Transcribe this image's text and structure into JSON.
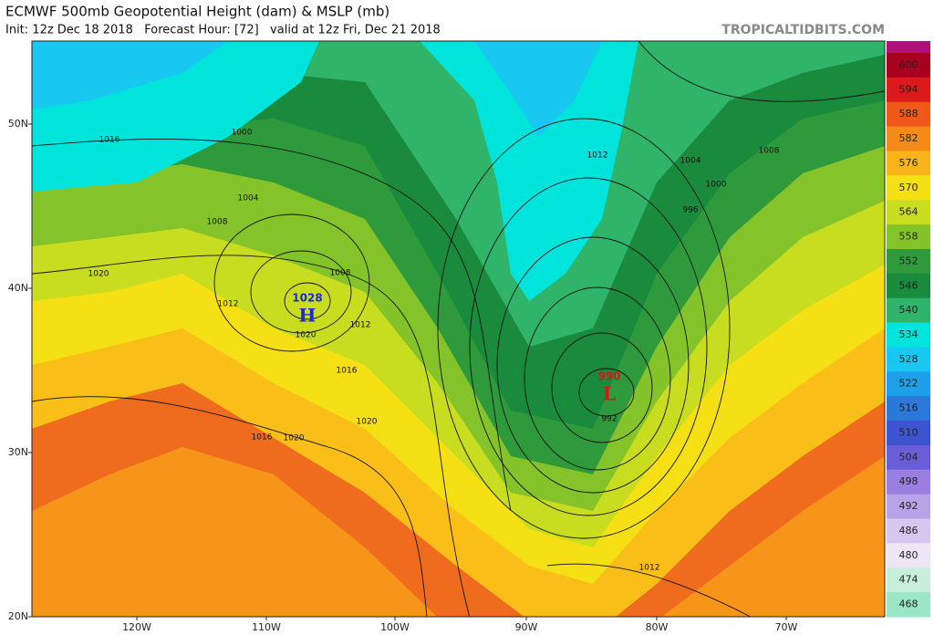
{
  "header": {
    "title": "ECMWF 500mb Geopotential Height (dam) & MSLP (mb)",
    "subtitle": "Init: 12z Dec 18 2018   Forecast Hour: [72]   valid at 12z Fri, Dec 21 2018",
    "credit": "TROPICALTIDBITS.COM"
  },
  "colorbar": {
    "labels": [
      600,
      594,
      588,
      582,
      576,
      570,
      564,
      558,
      552,
      546,
      540,
      534,
      528,
      522,
      516,
      510,
      504,
      498,
      492,
      486,
      480,
      474,
      468
    ],
    "colors": [
      "#a8001e",
      "#dc1a1c",
      "#ef5a1a",
      "#f48a18",
      "#f8b418",
      "#f4e014",
      "#c8dc20",
      "#84c42a",
      "#2e9a3c",
      "#1a8a3c",
      "#2fb46a",
      "#00e4dc",
      "#18c8f0",
      "#1ea0e8",
      "#2a78d8",
      "#3c54d0",
      "#6a5ed8",
      "#9a7ee0",
      "#b8a2e8",
      "#d6c6f0",
      "#eee6f4",
      "#c8eedc",
      "#9ae6c6"
    ],
    "top_color": "#b0107a"
  },
  "lat_labels": [
    "50N",
    "40N",
    "30N",
    "20N"
  ],
  "lon_labels": [
    "120W",
    "110W",
    "100W",
    "90W",
    "80W",
    "70W"
  ],
  "pressure_labels": [
    1016,
    1000,
    1004,
    1008,
    1020,
    1012,
    1008,
    1012,
    1020,
    1016,
    1020,
    1016,
    1020,
    1012,
    1004,
    1000,
    996,
    1008,
    992,
    1012
  ],
  "centers": [
    {
      "value": 1028,
      "symbol": "H"
    },
    {
      "value": 990,
      "symbol": "L"
    }
  ]
}
